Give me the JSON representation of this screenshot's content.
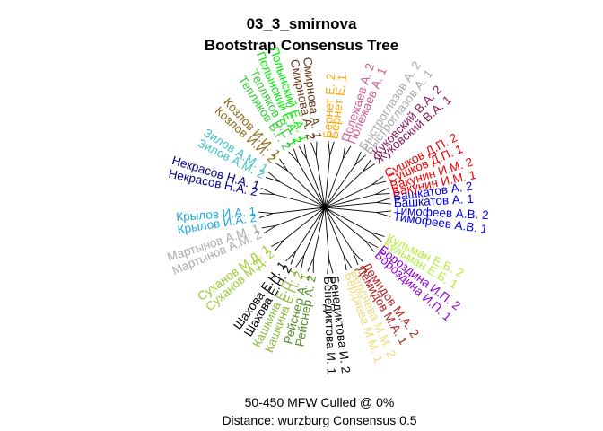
{
  "chart_data": {
    "type": "tree",
    "layout": "unrooted-radial",
    "title": "03_3_smirnova",
    "subtitle": "Bootstrap Consensus Tree",
    "caption_line1": "50-450 MFW  Culled @ 0%",
    "caption_line2": "Distance: wurzburg Consensus 0.5",
    "leaves": [
      {
        "label": "Башкатов А. 2",
        "color": "#0000ee",
        "angle": -8,
        "group": 1
      },
      {
        "label": "Башкатов А. 1",
        "color": "#0000ee",
        "angle": -3,
        "group": 1
      },
      {
        "label": "Тимофеев А.В. 2",
        "color": "#0000ee",
        "angle": 3,
        "group": 2
      },
      {
        "label": "Тимофеев А.В. 1",
        "color": "#0000ee",
        "angle": 8,
        "group": 2
      },
      {
        "label": "Кульман Е.Б. 2",
        "color": "#b3ee3a",
        "angle": 26,
        "group": 3
      },
      {
        "label": "Кульман Е.Б. 1",
        "color": "#b3ee3a",
        "angle": 31,
        "group": 3
      },
      {
        "label": "Бороздина И.П. 2",
        "color": "#9400d3",
        "angle": 37,
        "group": 4
      },
      {
        "label": "Бороздина И.П. 1",
        "color": "#9400d3",
        "angle": 42,
        "group": 4
      },
      {
        "label": "Демидов М.А. 2",
        "color": "#b22222",
        "angle": 55,
        "group": 5
      },
      {
        "label": "Демидов М.А. 1",
        "color": "#b22222",
        "angle": 60,
        "group": 5
      },
      {
        "label": "Бердяева М.М. 2",
        "color": "#eedd82",
        "angle": 66,
        "group": 6
      },
      {
        "label": "Бердяева М.М. 1",
        "color": "#eedd82",
        "angle": 71,
        "group": 6
      },
      {
        "label": "Бенедиктова И. 2",
        "color": "#000000",
        "angle": 83,
        "group": 7
      },
      {
        "label": "Бенедиктова И. 1",
        "color": "#000000",
        "angle": 88,
        "group": 7
      },
      {
        "label": "Рейснер А. 2",
        "color": "#548b24",
        "angle": 100,
        "group": 8
      },
      {
        "label": "Рейснер А. 1",
        "color": "#548b24",
        "angle": 105,
        "group": 8
      },
      {
        "label": "Кашкина Е.П. 2",
        "color": "#8fbc3f",
        "angle": 111,
        "group": 9
      },
      {
        "label": "Кашкина Е.П. 1",
        "color": "#8fbc3f",
        "angle": 116,
        "group": 9
      },
      {
        "label": "Шахова Е.Н. 2",
        "color": "#000000",
        "angle": 121,
        "group": 10
      },
      {
        "label": "Шахова Е.Н. 1",
        "color": "#000000",
        "angle": 126,
        "group": 10
      },
      {
        "label": "Суханов М.Д. 2",
        "color": "#9acd32",
        "angle": 139,
        "group": 11
      },
      {
        "label": "Суханов М.Д. 1",
        "color": "#9acd32",
        "angle": 144,
        "group": 11
      },
      {
        "label": "Мартынов А.М. 2",
        "color": "#a9a9a9",
        "angle": 157,
        "group": 12
      },
      {
        "label": "Мартынов А.М. 1",
        "color": "#a9a9a9",
        "angle": 162,
        "group": 12
      },
      {
        "label": "Крылов И.А. 2",
        "color": "#1ea7e1",
        "angle": 171,
        "group": 13
      },
      {
        "label": "Крылов И.А. 1",
        "color": "#1ea7e1",
        "angle": 176,
        "group": 13
      },
      {
        "label": "Некрасов Н.А. 2",
        "color": "#000080",
        "angle": 192,
        "group": 14
      },
      {
        "label": "Некрасов Н.А. 1",
        "color": "#000080",
        "angle": 197,
        "group": 14
      },
      {
        "label": "Зилов А.М. 2",
        "color": "#40c0c0",
        "angle": 207,
        "group": 15
      },
      {
        "label": "Зилов А.М. 1",
        "color": "#40c0c0",
        "angle": 212,
        "group": 15
      },
      {
        "label": "Козлов И.И. 2",
        "color": "#8b6914",
        "angle": 222,
        "group": 16
      },
      {
        "label": "Козлов И.И. 1",
        "color": "#8b6914",
        "angle": 227,
        "group": 16
      },
      {
        "label": "Тепляков В.Г. 2",
        "color": "#32cd32",
        "angle": 237,
        "group": 17
      },
      {
        "label": "Тепляков В.Г. 1",
        "color": "#32cd32",
        "angle": 242,
        "group": 17
      },
      {
        "label": "Полынский Е.А. 2",
        "color": "#00ee00",
        "angle": 247,
        "group": 18
      },
      {
        "label": "Полынский Е.А. 1",
        "color": "#00ee00",
        "angle": 252,
        "group": 18
      },
      {
        "label": "Смирнова А. 2",
        "color": "#6b3a1a",
        "angle": 258,
        "group": 19
      },
      {
        "label": "Смирнова А. 1",
        "color": "#6b3a1a",
        "angle": 263,
        "group": 19
      },
      {
        "label": "Бернет Е. 2",
        "color": "#ffa500",
        "angle": 273,
        "group": 20
      },
      {
        "label": "Бернет Е. 1",
        "color": "#ffa500",
        "angle": 278,
        "group": 20
      },
      {
        "label": "Полежаев А. 2",
        "color": "#cd6090",
        "angle": 288,
        "group": 21
      },
      {
        "label": "Полежаев А. 1",
        "color": "#cd6090",
        "angle": 293,
        "group": 21
      },
      {
        "label": "Быстроглазов А. 2",
        "color": "#a9a9a9",
        "angle": 303,
        "group": 22
      },
      {
        "label": "Быстроглазов А. 1",
        "color": "#a9a9a9",
        "angle": 308,
        "group": 22
      },
      {
        "label": "Жуковский В.А. 2",
        "color": "#8b1c62",
        "angle": 314,
        "group": 23
      },
      {
        "label": "Жуковский В.А. 1",
        "color": "#8b1c62",
        "angle": 319,
        "group": 23
      },
      {
        "label": "Сушков Д.П. 2",
        "color": "#ee0000",
        "angle": 332,
        "group": 24
      },
      {
        "label": "Сушков Д.П. 1",
        "color": "#ee0000",
        "angle": 337,
        "group": 24
      },
      {
        "label": "Вакунин И.М. 2",
        "color": "#ee0000",
        "angle": 343,
        "group": 25
      },
      {
        "label": "Вакунин И.М. 1",
        "color": "#ee0000",
        "angle": 348,
        "group": 25
      }
    ]
  }
}
